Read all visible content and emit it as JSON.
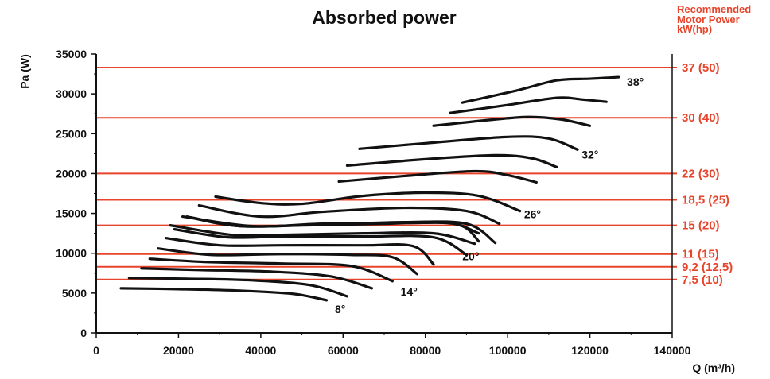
{
  "chart_data": {
    "type": "line",
    "title": "Absorbed power",
    "xlabel": "Q (m³/h)",
    "ylabel": "Pa (W)",
    "xlim": [
      0,
      140000
    ],
    "ylim": [
      0,
      35000
    ],
    "x_ticks": [
      0,
      20000,
      40000,
      60000,
      80000,
      100000,
      120000,
      140000
    ],
    "y_ticks": [
      0,
      5000,
      10000,
      15000,
      20000,
      25000,
      30000,
      35000
    ],
    "grid": false,
    "colors": {
      "curves": "#111111",
      "motor_lines": "#e8442c",
      "axis": "#111111"
    },
    "motor_power": {
      "title": "Recommended Motor Power kW(hp)",
      "lines": [
        {
          "label": "37 (50)",
          "y": 33300
        },
        {
          "label": "30 (40)",
          "y": 27000
        },
        {
          "label": "22 (30)",
          "y": 20000
        },
        {
          "label": "18,5 (25)",
          "y": 16700
        },
        {
          "label": "15 (20)",
          "y": 13500
        },
        {
          "label": "11 (15)",
          "y": 9900
        },
        {
          "label": "9,2 (12,5)",
          "y": 8300
        },
        {
          "label": "7,5 (10)",
          "y": 6700
        }
      ]
    },
    "curve_labels": [
      {
        "text": "8°",
        "x": 58000,
        "y": 3000
      },
      {
        "text": "14°",
        "x": 74000,
        "y": 5200
      },
      {
        "text": "20°",
        "x": 89000,
        "y": 9600
      },
      {
        "text": "26°",
        "x": 104000,
        "y": 14900
      },
      {
        "text": "32°",
        "x": 118000,
        "y": 22400
      },
      {
        "text": "38°",
        "x": 129000,
        "y": 31500
      }
    ],
    "series": [
      {
        "points": [
          [
            6000,
            5600
          ],
          [
            20000,
            5500
          ],
          [
            35000,
            5300
          ],
          [
            48000,
            4900
          ],
          [
            56000,
            4100
          ]
        ]
      },
      {
        "points": [
          [
            8000,
            6900
          ],
          [
            22000,
            6800
          ],
          [
            38000,
            6600
          ],
          [
            52000,
            6000
          ],
          [
            61000,
            4600
          ]
        ]
      },
      {
        "points": [
          [
            11000,
            8100
          ],
          [
            25000,
            7900
          ],
          [
            42000,
            7700
          ],
          [
            57000,
            7100
          ],
          [
            67000,
            5600
          ]
        ]
      },
      {
        "points": [
          [
            13000,
            9300
          ],
          [
            27000,
            8900
          ],
          [
            45000,
            8700
          ],
          [
            62000,
            8400
          ],
          [
            72000,
            6500
          ]
        ]
      },
      {
        "points": [
          [
            15000,
            10600
          ],
          [
            28000,
            9800
          ],
          [
            45000,
            9900
          ],
          [
            62000,
            9800
          ],
          [
            72000,
            9500
          ],
          [
            78000,
            7400
          ]
        ]
      },
      {
        "points": [
          [
            17000,
            11900
          ],
          [
            30000,
            11000
          ],
          [
            45000,
            11000
          ],
          [
            65000,
            11000
          ],
          [
            77000,
            10900
          ],
          [
            82000,
            8600
          ]
        ]
      },
      {
        "points": [
          [
            19000,
            13000
          ],
          [
            32000,
            12000
          ],
          [
            45000,
            12100
          ],
          [
            65000,
            12100
          ],
          [
            82000,
            12000
          ],
          [
            90000,
            9800
          ]
        ]
      },
      {
        "points": [
          [
            18000,
            13500
          ],
          [
            33000,
            12300
          ],
          [
            45000,
            12300
          ],
          [
            65000,
            12500
          ],
          [
            82000,
            12500
          ],
          [
            92000,
            11200
          ]
        ]
      },
      {
        "points": [
          [
            21000,
            14600
          ],
          [
            38000,
            13400
          ],
          [
            55000,
            13700
          ],
          [
            75000,
            13800
          ],
          [
            88000,
            13600
          ],
          [
            93000,
            11500
          ]
        ]
      },
      {
        "points": [
          [
            23000,
            14500
          ],
          [
            35000,
            13400
          ],
          [
            50000,
            13500
          ],
          [
            70000,
            13700
          ],
          [
            85000,
            13900
          ],
          [
            93000,
            12500
          ]
        ]
      },
      {
        "points": [
          [
            22000,
            14600
          ],
          [
            35000,
            13400
          ],
          [
            55000,
            13600
          ],
          [
            75000,
            13900
          ],
          [
            90000,
            13700
          ],
          [
            97000,
            11300
          ]
        ]
      },
      {
        "points": [
          [
            25000,
            16000
          ],
          [
            40000,
            14600
          ],
          [
            55000,
            15200
          ],
          [
            75000,
            15700
          ],
          [
            90000,
            15300
          ],
          [
            98000,
            13700
          ]
        ]
      },
      {
        "points": [
          [
            29000,
            17100
          ],
          [
            40000,
            16300
          ],
          [
            50000,
            16200
          ],
          [
            65000,
            17200
          ],
          [
            80000,
            17600
          ],
          [
            93000,
            17200
          ],
          [
            103000,
            15300
          ]
        ]
      },
      {
        "points": [
          [
            59000,
            19000
          ],
          [
            75000,
            19700
          ],
          [
            92000,
            20300
          ],
          [
            100000,
            19800
          ],
          [
            107000,
            18900
          ]
        ]
      },
      {
        "points": [
          [
            61000,
            21000
          ],
          [
            80000,
            21800
          ],
          [
            97000,
            22300
          ],
          [
            106000,
            21900
          ],
          [
            112000,
            20800
          ]
        ]
      },
      {
        "points": [
          [
            64000,
            23100
          ],
          [
            80000,
            23800
          ],
          [
            100000,
            24600
          ],
          [
            110000,
            24400
          ],
          [
            117000,
            23000
          ]
        ]
      },
      {
        "points": [
          [
            82000,
            26000
          ],
          [
            95000,
            26700
          ],
          [
            105000,
            27100
          ],
          [
            113000,
            26800
          ],
          [
            120000,
            26000
          ]
        ]
      },
      {
        "points": [
          [
            86000,
            27600
          ],
          [
            100000,
            28600
          ],
          [
            112000,
            29500
          ],
          [
            118000,
            29300
          ],
          [
            124000,
            29000
          ]
        ]
      },
      {
        "points": [
          [
            89000,
            28900
          ],
          [
            102000,
            30400
          ],
          [
            112000,
            31700
          ],
          [
            120000,
            31900
          ],
          [
            127000,
            32100
          ]
        ]
      }
    ]
  }
}
